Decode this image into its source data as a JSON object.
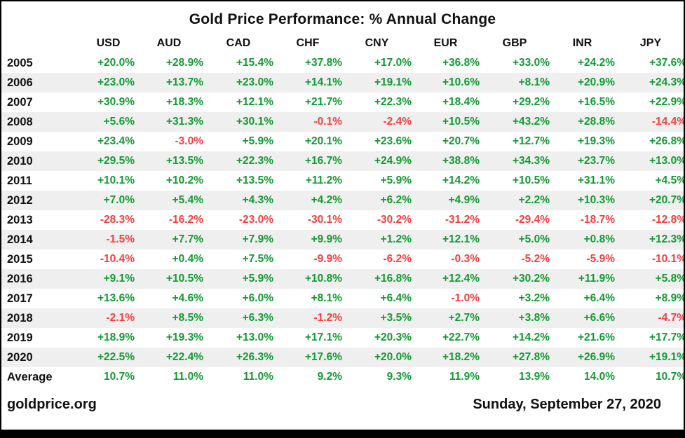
{
  "title": "Gold Price Performance: % Annual Change",
  "footer": {
    "source": "goldprice.org",
    "date": "Sunday, September 27, 2020"
  },
  "colors": {
    "positive": "#129a32",
    "negative": "#fb3c3c",
    "stripe": "#efefef",
    "text": "#111111"
  },
  "chart_data": {
    "type": "table",
    "title": "Gold Price Performance: % Annual Change",
    "unit": "% annual change",
    "columns": [
      "USD",
      "AUD",
      "CAD",
      "CHF",
      "CNY",
      "EUR",
      "GBP",
      "INR",
      "JPY"
    ],
    "rows": [
      {
        "label": "2005",
        "values": [
          20.0,
          28.9,
          15.4,
          37.8,
          17.0,
          36.8,
          33.0,
          24.2,
          37.6
        ]
      },
      {
        "label": "2006",
        "values": [
          23.0,
          13.7,
          23.0,
          14.1,
          19.1,
          10.6,
          8.1,
          20.9,
          24.3
        ]
      },
      {
        "label": "2007",
        "values": [
          30.9,
          18.3,
          12.1,
          21.7,
          22.3,
          18.4,
          29.2,
          16.5,
          22.9
        ]
      },
      {
        "label": "2008",
        "values": [
          5.6,
          31.3,
          30.1,
          -0.1,
          -2.4,
          10.5,
          43.2,
          28.8,
          -14.4
        ]
      },
      {
        "label": "2009",
        "values": [
          23.4,
          -3.0,
          5.9,
          20.1,
          23.6,
          20.7,
          12.7,
          19.3,
          26.8
        ]
      },
      {
        "label": "2010",
        "values": [
          29.5,
          13.5,
          22.3,
          16.7,
          24.9,
          38.8,
          34.3,
          23.7,
          13.0
        ]
      },
      {
        "label": "2011",
        "values": [
          10.1,
          10.2,
          13.5,
          11.2,
          5.9,
          14.2,
          10.5,
          31.1,
          4.5
        ]
      },
      {
        "label": "2012",
        "values": [
          7.0,
          5.4,
          4.3,
          4.2,
          6.2,
          4.9,
          2.2,
          10.3,
          20.7
        ]
      },
      {
        "label": "2013",
        "values": [
          -28.3,
          -16.2,
          -23.0,
          -30.1,
          -30.2,
          -31.2,
          -29.4,
          -18.7,
          -12.8
        ]
      },
      {
        "label": "2014",
        "values": [
          -1.5,
          7.7,
          7.9,
          9.9,
          1.2,
          12.1,
          5.0,
          0.8,
          12.3
        ]
      },
      {
        "label": "2015",
        "values": [
          -10.4,
          0.4,
          7.5,
          -9.9,
          -6.2,
          -0.3,
          -5.2,
          -5.9,
          -10.1
        ]
      },
      {
        "label": "2016",
        "values": [
          9.1,
          10.5,
          5.9,
          10.8,
          16.8,
          12.4,
          30.2,
          11.9,
          5.8
        ]
      },
      {
        "label": "2017",
        "values": [
          13.6,
          4.6,
          6.0,
          8.1,
          6.4,
          -1.0,
          3.2,
          6.4,
          8.9
        ]
      },
      {
        "label": "2018",
        "values": [
          -2.1,
          8.5,
          6.3,
          -1.2,
          3.5,
          2.7,
          3.8,
          6.6,
          -4.7
        ]
      },
      {
        "label": "2019",
        "values": [
          18.9,
          19.3,
          13.0,
          17.1,
          20.3,
          22.7,
          14.2,
          21.6,
          17.7
        ]
      },
      {
        "label": "2020",
        "values": [
          22.5,
          22.4,
          26.3,
          17.6,
          20.0,
          18.2,
          27.8,
          26.9,
          19.1
        ]
      },
      {
        "label": "Average",
        "values": [
          10.7,
          11.0,
          11.0,
          9.2,
          9.3,
          11.9,
          13.9,
          14.0,
          10.7
        ]
      }
    ]
  }
}
